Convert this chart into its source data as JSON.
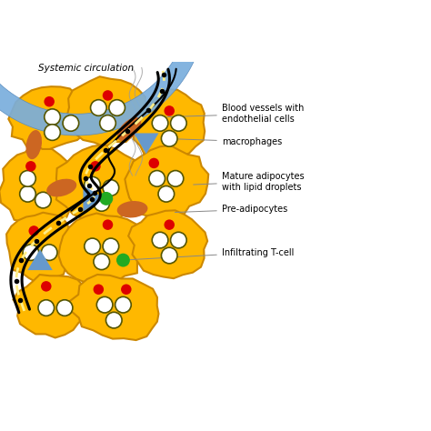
{
  "bg_color": "#ffffff",
  "adipocyte_color": "#FFB800",
  "adipocyte_edge": "#CC8800",
  "lipid_droplet_color": "#ffffff",
  "lipid_droplet_edge": "#555500",
  "macrophage_color": "#CC6622",
  "red_dot_color": "#DD0000",
  "green_dot_color": "#22AA22",
  "blue_color": "#6699CC",
  "vessel_color": "#000000",
  "annotation_line_color": "#888888",
  "labels": {
    "systemic": "Systemic circulation",
    "blood_vessels": "Blood vessels with\nendothelial cells",
    "macrophages": "macrophages",
    "mature": "Mature adipocytes\nwith lipid droplets",
    "preadipocytes": "Pre-adipocytes",
    "tcell": "Infiltrating T-cell"
  },
  "figsize": [
    4.74,
    4.74
  ],
  "dpi": 100
}
